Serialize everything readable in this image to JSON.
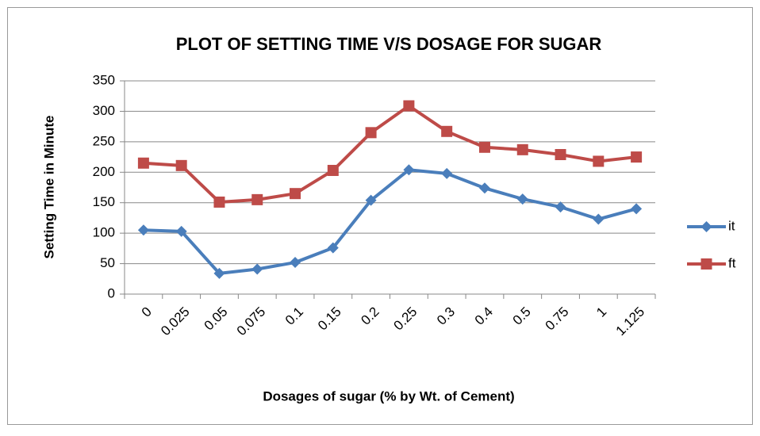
{
  "chart_data": {
    "type": "line",
    "title": "PLOT OF SETTING TIME V/S DOSAGE  FOR  SUGAR",
    "x_label": "Dosages of sugar (% by Wt. of Cement)",
    "y_label": "Setting Time in Minute",
    "categories": [
      "0",
      "0.025",
      "0.05",
      "0.075",
      "0.1",
      "0.15",
      "0.2",
      "0.25",
      "0.3",
      "0.4",
      "0.5",
      "0.75",
      "1",
      "1.125"
    ],
    "series": [
      {
        "name": "it",
        "color": "#4a7ebb",
        "marker": "diamond",
        "values": [
          105,
          103,
          34,
          41,
          52,
          76,
          154,
          204,
          198,
          174,
          156,
          143,
          123,
          140
        ]
      },
      {
        "name": "ft",
        "color": "#be4b48",
        "marker": "square",
        "values": [
          215,
          211,
          151,
          155,
          165,
          203,
          265,
          309,
          267,
          241,
          237,
          229,
          218,
          225
        ]
      }
    ],
    "ylim": [
      0,
      350
    ],
    "yticks": [
      0,
      50,
      100,
      150,
      200,
      250,
      300,
      350
    ],
    "grid": true,
    "legend": "right"
  }
}
